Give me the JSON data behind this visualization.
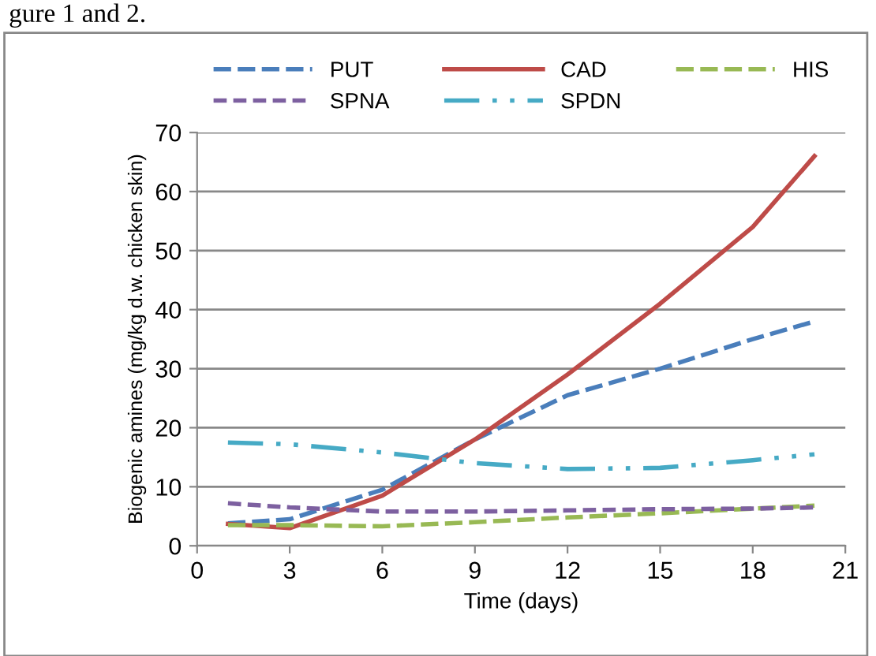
{
  "chart_data": {
    "type": "line",
    "xlabel": "Time (days)",
    "ylabel": "Biogenic amines (mg/kg d.w. chicken skin)",
    "annotations": [
      "gure 1 and 2."
    ],
    "x": [
      1,
      3,
      6,
      9,
      12,
      15,
      18,
      20
    ],
    "series": [
      {
        "name": "PUT",
        "color": "#4a7ebb",
        "line_style": "dashed",
        "values": [
          3.8,
          4.5,
          9.5,
          18,
          25.5,
          30,
          35,
          38
        ]
      },
      {
        "name": "CAD",
        "color": "#be4b48",
        "line_style": "solid",
        "values": [
          3.7,
          3,
          8.5,
          18,
          29,
          41,
          54,
          66
        ]
      },
      {
        "name": "HIS",
        "color": "#98b954",
        "line_style": "dashed",
        "values": [
          3.5,
          3.5,
          3.3,
          4,
          4.8,
          5.5,
          6.3,
          6.8
        ]
      },
      {
        "name": "SPNA",
        "color": "#7d60a0",
        "line_style": "dotted",
        "values": [
          7.2,
          6.5,
          5.8,
          5.8,
          6,
          6.2,
          6.3,
          6.5
        ]
      },
      {
        "name": "SPDN",
        "color": "#46aac5",
        "line_style": "dashdot",
        "values": [
          17.5,
          17.2,
          15.8,
          14,
          13,
          13.2,
          14.5,
          15.5
        ]
      }
    ],
    "xlim": [
      0,
      21
    ],
    "xticks": [
      0,
      3,
      6,
      9,
      12,
      15,
      18,
      21
    ],
    "ylim": [
      0,
      70
    ],
    "yticks": [
      0,
      10,
      20,
      30,
      40,
      50,
      60,
      70
    ],
    "grid": "y",
    "legend": "top",
    "marker": "none"
  }
}
